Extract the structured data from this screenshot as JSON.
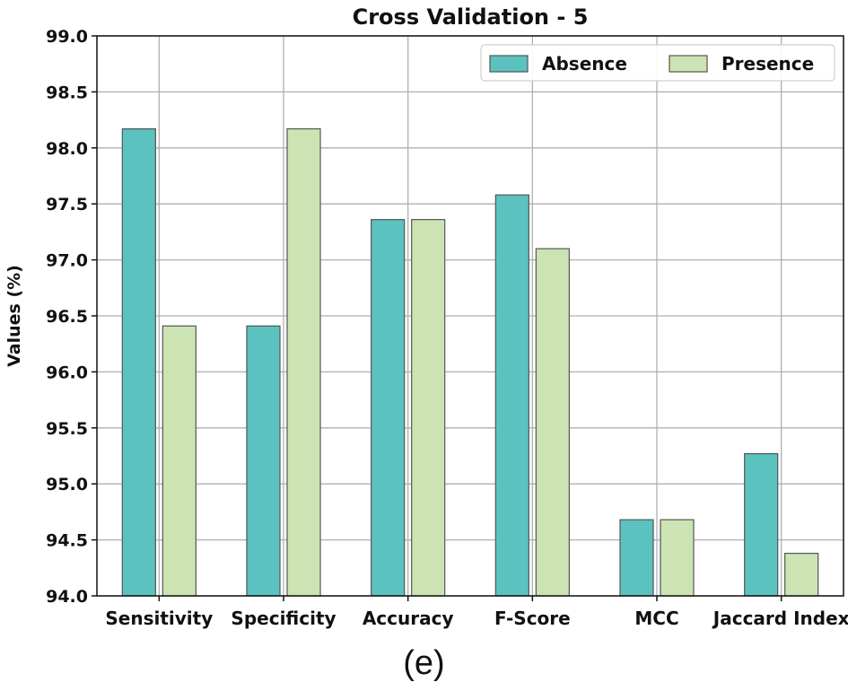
{
  "chart_data": {
    "type": "bar",
    "title": "Cross Validation - 5",
    "xlabel": "",
    "ylabel": "Values (%)",
    "ylim": [
      94.0,
      99.0
    ],
    "yticks": [
      "94.0",
      "94.5",
      "95.0",
      "95.5",
      "96.0",
      "96.5",
      "97.0",
      "97.5",
      "98.0",
      "98.5",
      "99.0"
    ],
    "categories": [
      "Sensitivity",
      "Specificity",
      "Accuracy",
      "F-Score",
      "MCC",
      "Jaccard Index"
    ],
    "series": [
      {
        "name": "Absence",
        "color": "#5bc2bf",
        "values": [
          98.17,
          96.41,
          97.36,
          97.58,
          94.68,
          95.27
        ]
      },
      {
        "name": "Presence",
        "color": "#cce4b3",
        "values": [
          96.41,
          98.17,
          97.36,
          97.1,
          94.68,
          94.38
        ]
      }
    ],
    "grid": true,
    "legend_position": "top-right"
  },
  "caption": "(e)"
}
